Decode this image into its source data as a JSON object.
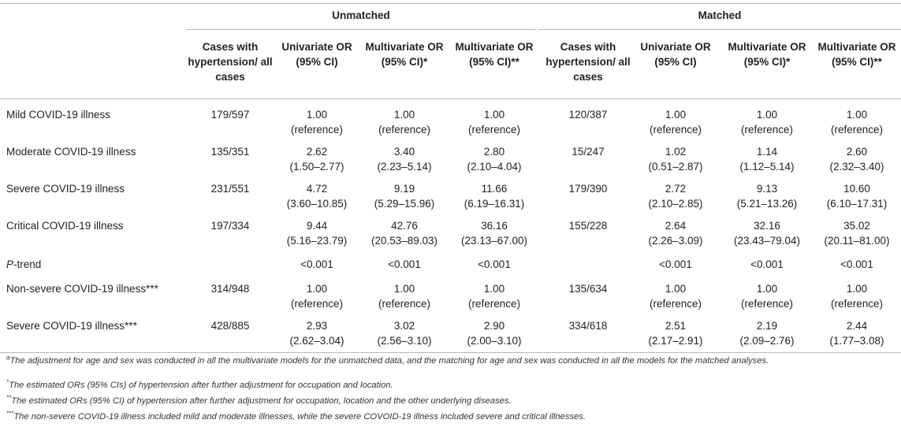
{
  "group_headers": {
    "unmatched": "Unmatched",
    "matched": "Matched"
  },
  "column_headers": [
    "Cases with hypertension/ all cases",
    "Univariate OR (95% CI)",
    "Multivariate OR (95% CI)*",
    "Multivariate OR (95% CI)**",
    "Cases with hypertension/ all cases",
    "Univariate OR (95% CI)",
    "Multivariate OR (95% CI)*",
    "Multivariate OR (95% CI)**"
  ],
  "rows": [
    {
      "label": "Mild COVID-19 illness",
      "cells": [
        [
          "179/597",
          ""
        ],
        [
          "1.00",
          "(reference)"
        ],
        [
          "1.00",
          "(reference)"
        ],
        [
          "1.00",
          "(reference)"
        ],
        [
          "120/387",
          ""
        ],
        [
          "1.00",
          "(reference)"
        ],
        [
          "1.00",
          "(reference)"
        ],
        [
          "1.00",
          "(reference)"
        ]
      ]
    },
    {
      "label": "Moderate COVID-19 illness",
      "cells": [
        [
          "135/351",
          ""
        ],
        [
          "2.62",
          "(1.50–2.77)"
        ],
        [
          "3.40",
          "(2.23–5.14)"
        ],
        [
          "2.80",
          "(2.10–4.04)"
        ],
        [
          "15/247",
          ""
        ],
        [
          "1.02",
          "(0.51–2.87)"
        ],
        [
          "1.14",
          "(1.12–5.14)"
        ],
        [
          "2.60",
          "(2.32–3.40)"
        ]
      ]
    },
    {
      "label": "Severe COVID-19 illness",
      "cells": [
        [
          "231/551",
          ""
        ],
        [
          "4.72",
          "(3.60–10.85)"
        ],
        [
          "9.19",
          "(5.29–15.96)"
        ],
        [
          "11.66",
          "(6.19–16.31)"
        ],
        [
          "179/390",
          ""
        ],
        [
          "2.72",
          "(2.10–2.85)"
        ],
        [
          "9.13",
          "(5.21–13.26)"
        ],
        [
          "10.60",
          "(6.10–17.31)"
        ]
      ]
    },
    {
      "label": "Critical COVID-19 illness",
      "cells": [
        [
          "197/334",
          ""
        ],
        [
          "9.44",
          "(5.16–23.79)"
        ],
        [
          "42.76",
          "(20.53–89.03)"
        ],
        [
          "36.16",
          "(23.13–67.00)"
        ],
        [
          "155/228",
          ""
        ],
        [
          "2.64",
          "(2.26–3.09)"
        ],
        [
          "32.16",
          "(23.43–79.04)"
        ],
        [
          "35.02",
          "(20.11–81.00)"
        ]
      ]
    },
    {
      "label": "P-trend",
      "cells": [
        [
          "",
          ""
        ],
        [
          "<0.001",
          ""
        ],
        [
          "<0.001",
          ""
        ],
        [
          "<0.001",
          ""
        ],
        [
          "",
          ""
        ],
        [
          "<0.001",
          ""
        ],
        [
          "<0.001",
          ""
        ],
        [
          "<0.001",
          ""
        ]
      ]
    },
    {
      "label": "Non-severe COVID-19 illness***",
      "cells": [
        [
          "314/948",
          ""
        ],
        [
          "1.00",
          "(reference)"
        ],
        [
          "1.00",
          "(reference)"
        ],
        [
          "1.00",
          "(reference)"
        ],
        [
          "135/634",
          ""
        ],
        [
          "1.00",
          "(reference)"
        ],
        [
          "1.00",
          "(reference)"
        ],
        [
          "1.00",
          "(reference)"
        ]
      ]
    },
    {
      "label": "Severe COVID-19 illness***",
      "cells": [
        [
          "428/885",
          ""
        ],
        [
          "2.93",
          "(2.62–3.04)"
        ],
        [
          "3.02",
          "(2.56–3.10)"
        ],
        [
          "2.90",
          "(2.00–3.10)"
        ],
        [
          "334/618",
          ""
        ],
        [
          "2.51",
          "(2.17–2.91)"
        ],
        [
          "2.19",
          "(2.09–2.76)"
        ],
        [
          "2.44",
          "(1.77–3.08)"
        ]
      ]
    }
  ],
  "footnotes": {
    "a": {
      "mark": "a",
      "text": "The adjustment for age and sex was conducted in all the multivariate models for the unmatched data, and the matching for age and sex was conducted in all the models for the matched analyses."
    },
    "b": {
      "mark": "*",
      "text": "The estimated ORs (95% CIs) of hypertension after further adjustment for occupation and location."
    },
    "c": {
      "mark": "**",
      "text": "The estimated ORs (95% CI) of hypertension after further adjustment for occupation, location and the other underlying diseases."
    },
    "d": {
      "mark": "***",
      "text": "The non-severe COVID-19 illness included mild and moderate illnesses, while the severe COVOID-19 illness included severe and critical illnesses."
    }
  }
}
